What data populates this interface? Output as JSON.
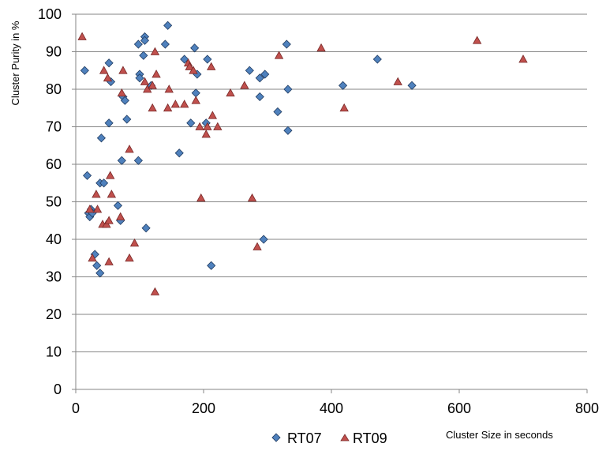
{
  "chart_data": {
    "type": "scatter",
    "title": "",
    "xlabel": "Cluster Size in seconds",
    "ylabel": "Cluster Purity in %",
    "xlim": [
      0,
      800
    ],
    "ylim": [
      0,
      100
    ],
    "xticks": [
      "0",
      "200",
      "400",
      "600",
      "800"
    ],
    "yticks": [
      "0",
      "10",
      "20",
      "30",
      "40",
      "50",
      "60",
      "70",
      "80",
      "90",
      "100"
    ],
    "grid": "horizontal",
    "legend_position": "bottom",
    "series": [
      {
        "name": "RT07",
        "marker": "diamond",
        "color": "#4F81BD",
        "points": [
          [
            14,
            85
          ],
          [
            18,
            57
          ],
          [
            20,
            47
          ],
          [
            22,
            46
          ],
          [
            24,
            48
          ],
          [
            26,
            47
          ],
          [
            30,
            36
          ],
          [
            33,
            33
          ],
          [
            38,
            55
          ],
          [
            38,
            31
          ],
          [
            40,
            67
          ],
          [
            44,
            55
          ],
          [
            52,
            87
          ],
          [
            52,
            71
          ],
          [
            55,
            82
          ],
          [
            66,
            49
          ],
          [
            70,
            45
          ],
          [
            72,
            61
          ],
          [
            74,
            78
          ],
          [
            77,
            77
          ],
          [
            80,
            72
          ],
          [
            98,
            92
          ],
          [
            98,
            61
          ],
          [
            100,
            84
          ],
          [
            100,
            83
          ],
          [
            106,
            89
          ],
          [
            108,
            94
          ],
          [
            108,
            93
          ],
          [
            110,
            43
          ],
          [
            118,
            81
          ],
          [
            140,
            92
          ],
          [
            144,
            97
          ],
          [
            162,
            63
          ],
          [
            170,
            88
          ],
          [
            180,
            71
          ],
          [
            186,
            91
          ],
          [
            188,
            79
          ],
          [
            190,
            84
          ],
          [
            204,
            71
          ],
          [
            206,
            88
          ],
          [
            212,
            33
          ],
          [
            272,
            85
          ],
          [
            288,
            83
          ],
          [
            288,
            78
          ],
          [
            294,
            40
          ],
          [
            296,
            84
          ],
          [
            316,
            74
          ],
          [
            330,
            92
          ],
          [
            332,
            80
          ],
          [
            332,
            69
          ],
          [
            418,
            81
          ],
          [
            472,
            88
          ],
          [
            526,
            81
          ]
        ]
      },
      {
        "name": "RT09",
        "marker": "triangle",
        "color": "#C0504D",
        "points": [
          [
            10,
            94
          ],
          [
            22,
            48
          ],
          [
            26,
            35
          ],
          [
            32,
            52
          ],
          [
            34,
            48
          ],
          [
            42,
            44
          ],
          [
            44,
            85
          ],
          [
            48,
            44
          ],
          [
            50,
            83
          ],
          [
            52,
            45
          ],
          [
            52,
            34
          ],
          [
            54,
            57
          ],
          [
            56,
            52
          ],
          [
            70,
            46
          ],
          [
            72,
            79
          ],
          [
            74,
            85
          ],
          [
            84,
            64
          ],
          [
            84,
            35
          ],
          [
            92,
            39
          ],
          [
            108,
            82
          ],
          [
            112,
            80
          ],
          [
            120,
            81
          ],
          [
            120,
            75
          ],
          [
            124,
            90
          ],
          [
            124,
            26
          ],
          [
            126,
            84
          ],
          [
            144,
            75
          ],
          [
            146,
            80
          ],
          [
            156,
            76
          ],
          [
            170,
            76
          ],
          [
            176,
            87
          ],
          [
            178,
            86
          ],
          [
            184,
            85
          ],
          [
            188,
            77
          ],
          [
            194,
            70
          ],
          [
            196,
            51
          ],
          [
            204,
            68
          ],
          [
            206,
            70
          ],
          [
            212,
            86
          ],
          [
            214,
            73
          ],
          [
            222,
            70
          ],
          [
            242,
            79
          ],
          [
            264,
            81
          ],
          [
            276,
            51
          ],
          [
            284,
            38
          ],
          [
            318,
            89
          ],
          [
            384,
            91
          ],
          [
            420,
            75
          ],
          [
            504,
            82
          ],
          [
            628,
            93
          ],
          [
            700,
            88
          ]
        ]
      }
    ]
  }
}
